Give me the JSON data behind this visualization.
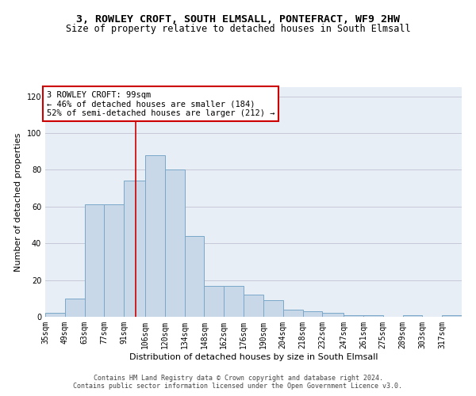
{
  "title": "3, ROWLEY CROFT, SOUTH ELMSALL, PONTEFRACT, WF9 2HW",
  "subtitle": "Size of property relative to detached houses in South Elmsall",
  "xlabel": "Distribution of detached houses by size in South Elmsall",
  "ylabel": "Number of detached properties",
  "bar_color": "#c8d8e8",
  "bar_edge_color": "#7aa8c8",
  "bar_categories": [
    "35sqm",
    "49sqm",
    "63sqm",
    "77sqm",
    "91sqm",
    "106sqm",
    "120sqm",
    "134sqm",
    "148sqm",
    "162sqm",
    "176sqm",
    "190sqm",
    "204sqm",
    "218sqm",
    "232sqm",
    "247sqm",
    "261sqm",
    "275sqm",
    "289sqm",
    "303sqm",
    "317sqm"
  ],
  "hist_values": [
    2,
    10,
    61,
    61,
    74,
    88,
    80,
    44,
    17,
    17,
    12,
    9,
    4,
    3,
    2,
    1,
    1,
    0,
    1,
    0,
    1
  ],
  "ylim": [
    0,
    125
  ],
  "yticks": [
    0,
    20,
    40,
    60,
    80,
    100,
    120
  ],
  "bin_edges": [
    35,
    49,
    63,
    77,
    91,
    106,
    120,
    134,
    148,
    162,
    176,
    190,
    204,
    218,
    232,
    247,
    261,
    275,
    289,
    303,
    317,
    331
  ],
  "vline_x": 99,
  "annotation_text": "3 ROWLEY CROFT: 99sqm\n← 46% of detached houses are smaller (184)\n52% of semi-detached houses are larger (212) →",
  "annotation_box_color": "#ffffff",
  "annotation_box_edge": "#cc0000",
  "grid_color": "#c8c8d8",
  "background_color": "#e8eef5",
  "vline_color": "#cc0000",
  "footer_text": "Contains HM Land Registry data © Crown copyright and database right 2024.\nContains public sector information licensed under the Open Government Licence v3.0.",
  "title_fontsize": 9.5,
  "subtitle_fontsize": 8.5,
  "ylabel_fontsize": 8,
  "xlabel_fontsize": 8,
  "tick_fontsize": 7,
  "annotation_fontsize": 7.5,
  "footer_fontsize": 6
}
